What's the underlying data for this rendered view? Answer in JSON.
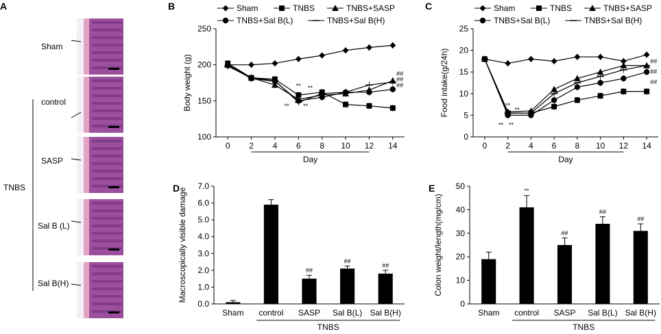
{
  "panelA": {
    "letter": "A",
    "group_label": "TNBS",
    "rows": [
      {
        "label": "Sham"
      },
      {
        "label": "control"
      },
      {
        "label": "SASP"
      },
      {
        "label": "Sal B (L)"
      },
      {
        "label": "Sal B(H)"
      }
    ],
    "tissue_colors": {
      "lumen": "#f4eef6",
      "mucosa": "#9c4f9c",
      "muscle": "#e2a3c4",
      "gland": "#6d2d7f"
    }
  },
  "chart_data": [
    {
      "id": "B",
      "letter": "B",
      "type": "line",
      "xlabel": "Day",
      "ylabel": "Body weight (g)",
      "x": [
        0,
        2,
        4,
        6,
        8,
        10,
        12,
        14
      ],
      "xlim": [
        -1,
        15
      ],
      "ylim": [
        100,
        250
      ],
      "yticks": [
        100,
        150,
        200,
        250
      ],
      "series": [
        {
          "name": "Sham",
          "marker": "diamond",
          "values": [
            200,
            200,
            202,
            208,
            213,
            220,
            224,
            227
          ]
        },
        {
          "name": "TNBS",
          "marker": "square",
          "values": [
            202,
            182,
            180,
            158,
            162,
            145,
            143,
            140
          ]
        },
        {
          "name": "TNBS+SASP",
          "marker": "triangle",
          "values": [
            200,
            182,
            172,
            152,
            158,
            160,
            165,
            178
          ]
        },
        {
          "name": "TNBS+Sal B(L)",
          "marker": "circle",
          "values": [
            199,
            181,
            177,
            150,
            155,
            162,
            162,
            166
          ]
        },
        {
          "name": "TNBS+Sal B(H)",
          "marker": "line",
          "values": [
            198,
            182,
            178,
            148,
            160,
            162,
            172,
            176
          ]
        }
      ],
      "legend_row1": [
        "Sham",
        "TNBS",
        "TNBS+SASP"
      ],
      "legend_row2": [
        "TNBS+Sal B(L)",
        "TNBS+Sal B(H)"
      ],
      "annotations": [
        {
          "text": "**",
          "x": 6,
          "y": 168
        },
        {
          "text": "**",
          "x": 7,
          "y": 165
        },
        {
          "text": "**",
          "x": 5,
          "y": 140
        },
        {
          "text": "**",
          "x": 6.6,
          "y": 140
        },
        {
          "text": "##",
          "x": 14.6,
          "y": 185
        },
        {
          "text": "##",
          "x": 14.6,
          "y": 177
        },
        {
          "text": "##",
          "x": 14.6,
          "y": 169
        }
      ],
      "underline": {
        "from": 2,
        "to": 12
      }
    },
    {
      "id": "C",
      "letter": "C",
      "type": "line",
      "xlabel": "Day",
      "ylabel": "Food intake(g/24h)",
      "x": [
        0,
        2,
        4,
        6,
        8,
        10,
        12,
        14
      ],
      "xlim": [
        -1,
        15
      ],
      "ylim": [
        0,
        25
      ],
      "yticks": [
        0,
        5,
        10,
        15,
        20,
        25
      ],
      "series": [
        {
          "name": "Sham",
          "marker": "diamond",
          "values": [
            18,
            17,
            18,
            17.5,
            18.5,
            18.5,
            17.5,
            19
          ]
        },
        {
          "name": "TNBS",
          "marker": "square",
          "values": [
            18,
            5.5,
            5.5,
            7,
            8.5,
            9.5,
            10.5,
            10.5
          ]
        },
        {
          "name": "TNBS+SASP",
          "marker": "triangle",
          "values": [
            18,
            5.8,
            6,
            11,
            13.5,
            15,
            16.5,
            16.5
          ]
        },
        {
          "name": "TNBS+Sal B(L)",
          "marker": "circle",
          "values": [
            18,
            5,
            5,
            8.5,
            11.5,
            12.5,
            13.5,
            15
          ]
        },
        {
          "name": "TNBS+Sal B(H)",
          "marker": "line",
          "values": [
            18,
            5.5,
            5.5,
            10,
            12.5,
            14,
            15.5,
            16.5
          ]
        }
      ],
      "legend_row1": [
        "Sham",
        "TNBS",
        "TNBS+SASP"
      ],
      "legend_row2": [
        "TNBS+Sal B(L)",
        "TNBS+Sal B(H)"
      ],
      "annotations": [
        {
          "text": "**",
          "x": 2,
          "y": 6.8
        },
        {
          "text": "**",
          "x": 2.8,
          "y": 5.8
        },
        {
          "text": "**",
          "x": 1.4,
          "y": 2.3
        },
        {
          "text": "**",
          "x": 2.3,
          "y": 2.3
        },
        {
          "text": "##",
          "x": 14.6,
          "y": 17
        },
        {
          "text": "##",
          "x": 14.6,
          "y": 14.6
        },
        {
          "text": "##",
          "x": 14.6,
          "y": 12.2
        }
      ],
      "underline": {
        "from": 2,
        "to": 12
      }
    },
    {
      "id": "D",
      "letter": "D",
      "type": "bar",
      "ylabel": "Macroscopically visible damage",
      "categories": [
        "Sham",
        "control",
        "SASP",
        "Sal B(L)",
        "Sal B(H)"
      ],
      "values": [
        0.1,
        5.9,
        1.5,
        2.1,
        1.8
      ],
      "errors": [
        0.1,
        0.3,
        0.2,
        0.15,
        0.2
      ],
      "ylim": [
        0,
        7
      ],
      "yticks": [
        "0.0",
        "1.0",
        "2.0",
        "3.0",
        "4.0",
        "5.0",
        "6.0",
        "7.0"
      ],
      "marks": [
        "",
        "",
        "##",
        "##",
        "##"
      ],
      "group_label": "TNBS",
      "group_from": 1,
      "group_to": 4
    },
    {
      "id": "E",
      "letter": "E",
      "type": "bar",
      "ylabel": "Colon weight/length(mg/cm)",
      "categories": [
        "Sham",
        "control",
        "SASP",
        "Sal B(L)",
        "Sal B(H)"
      ],
      "values": [
        19,
        41,
        25,
        34,
        31
      ],
      "errors": [
        3,
        5,
        3,
        3,
        3
      ],
      "ylim": [
        0,
        50
      ],
      "yticks": [
        "0",
        "10",
        "20",
        "30",
        "40",
        "50"
      ],
      "marks": [
        "",
        "**",
        "##",
        "##",
        "##"
      ],
      "group_label": "TNBS",
      "group_from": 1,
      "group_to": 4
    }
  ]
}
